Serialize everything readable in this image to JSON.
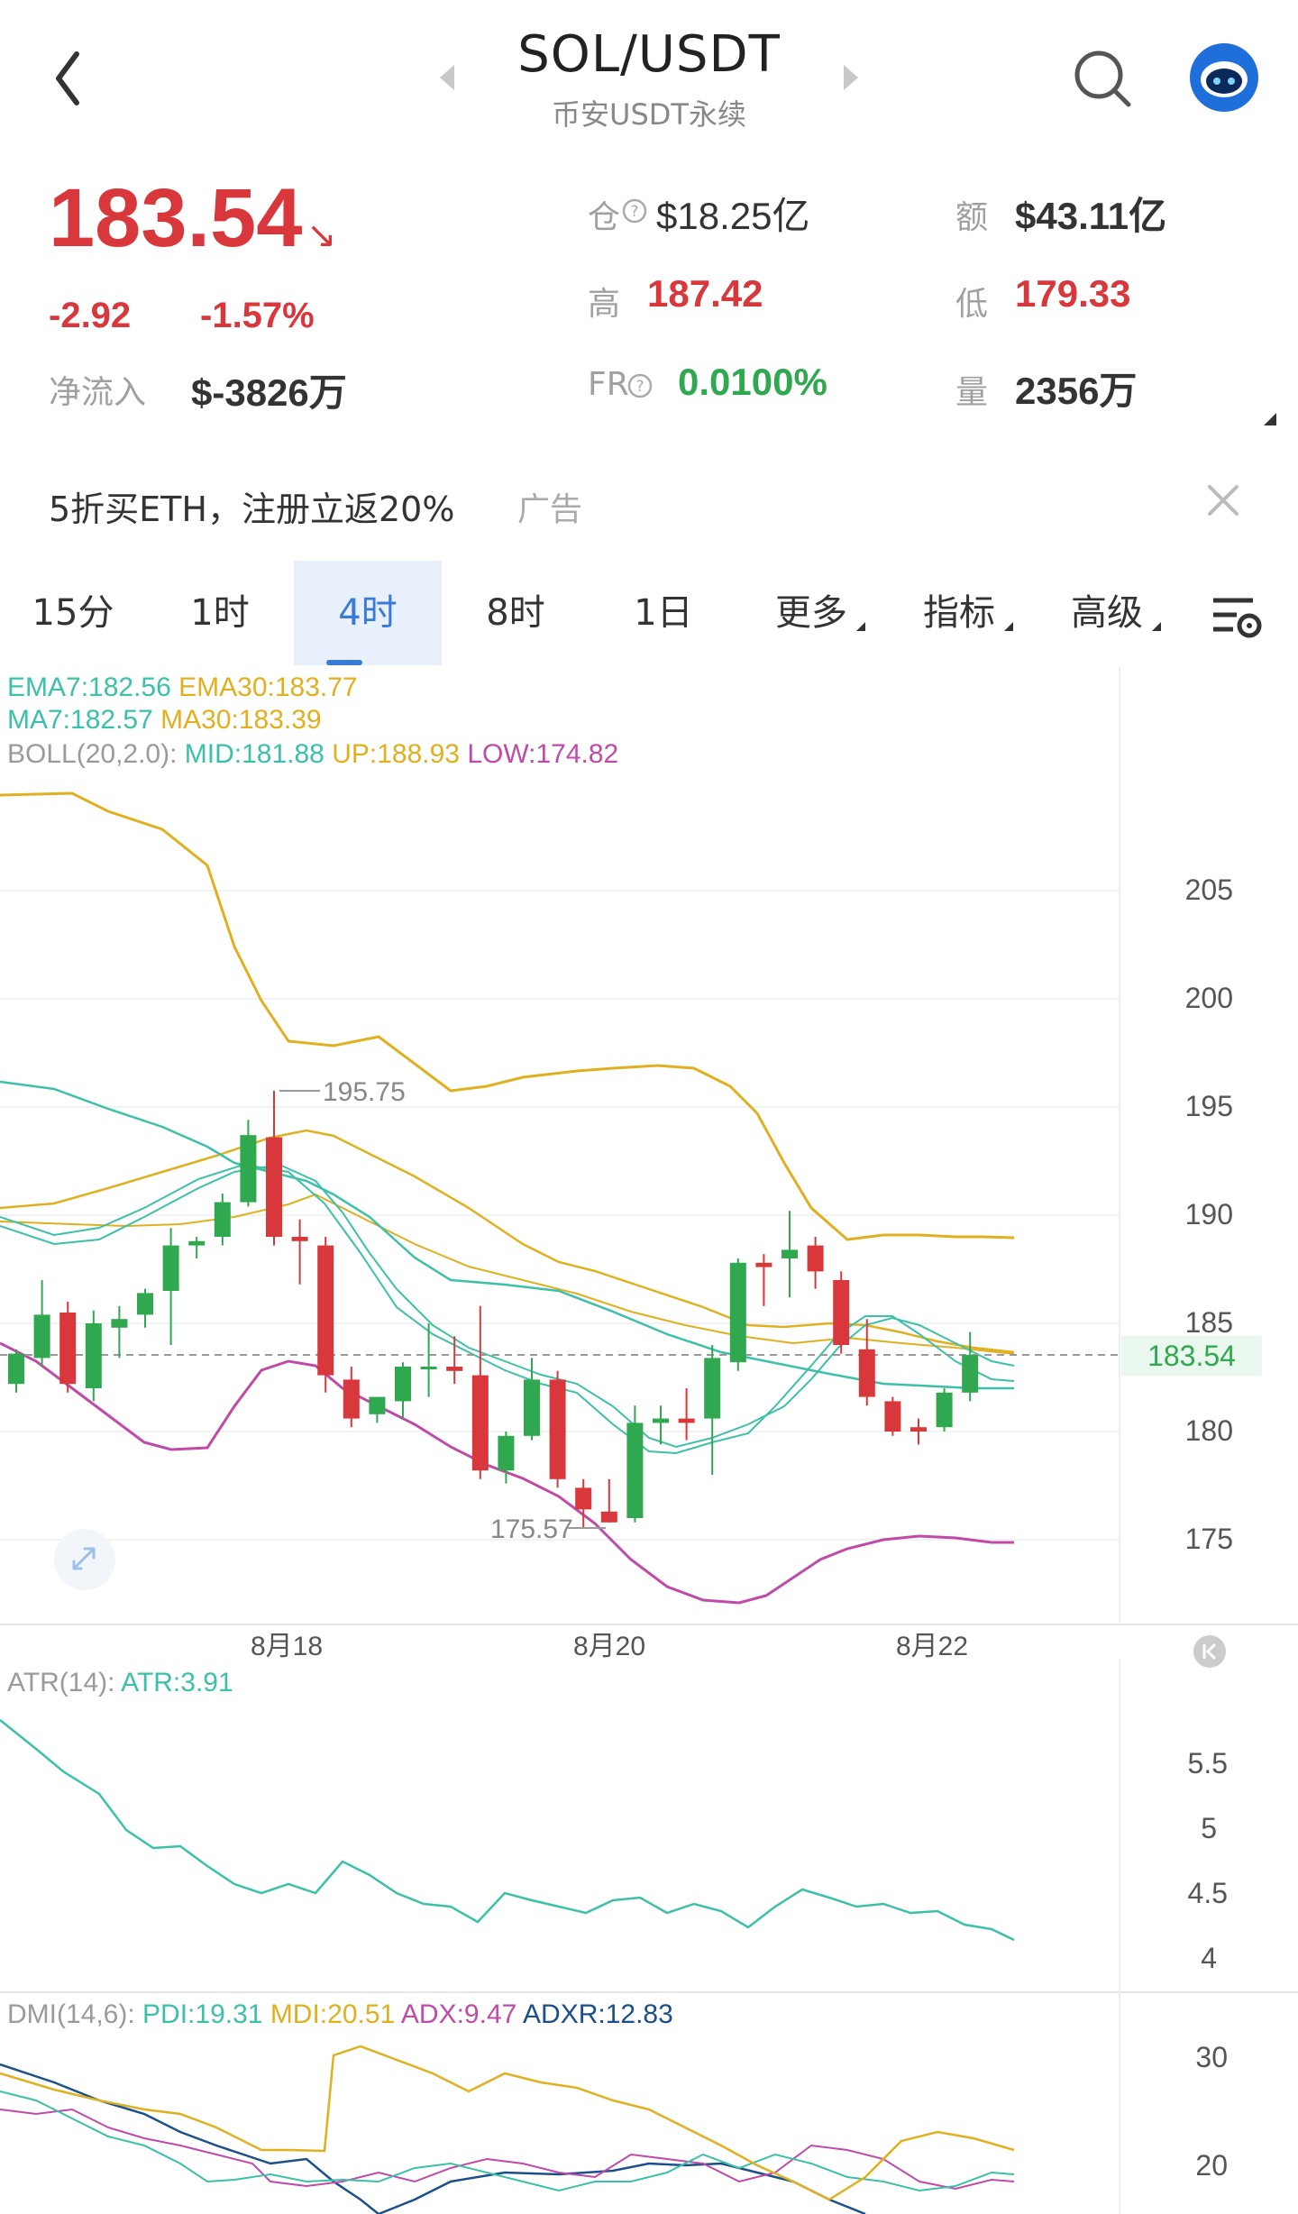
{
  "header": {
    "title": "SOL/USDT",
    "subtitle": "币安USDT永续"
  },
  "stats": {
    "price": "183.54",
    "change": "-2.92",
    "change_pct": "-1.57%",
    "netflow_label": "净流入",
    "netflow_value": "$-3826万",
    "oi_label": "仓",
    "oi_value": "$18.25亿",
    "turnover_label": "额",
    "turnover_value": "$43.11亿",
    "high_label": "高",
    "high_value": "187.42",
    "low_label": "低",
    "low_value": "179.33",
    "fr_label": "FR",
    "fr_value": "0.0100%",
    "vol_label": "量",
    "vol_value": "2356万"
  },
  "ad": {
    "text": "5折买ETH，注册立返20%",
    "tag": "广告"
  },
  "tabs": [
    "15分",
    "1时",
    "4时",
    "8时",
    "1日",
    "更多",
    "指标",
    "高级"
  ],
  "active_tab": "4时",
  "legends": {
    "ema7": "EMA7:182.56",
    "ema30": "EMA30:183.77",
    "ma7": "MA7:182.57",
    "ma30": "MA30:183.39",
    "boll_name": "BOLL(20,2.0):",
    "boll_mid": "MID:181.88",
    "boll_up": "UP:188.93",
    "boll_low": "LOW:174.82",
    "atr_name": "ATR(14):",
    "atr_val": "ATR:3.91",
    "dmi_name": "DMI(14,6):",
    "pdi": "PDI:19.31",
    "mdi": "MDI:20.51",
    "adx": "ADX:9.47",
    "adxr": "ADXR:12.83"
  },
  "colors": {
    "up": "#2fa84f",
    "down": "#d8383c",
    "accent": "#3a7bd5",
    "teal": "#3cc0a8",
    "gold": "#e0b020",
    "magenta": "#c04aa8",
    "navy": "#1a4f8a"
  },
  "chart_data": [
    {
      "type": "candlestick",
      "y_ticks": [
        "205",
        "200",
        "195",
        "190",
        "185",
        "180",
        "175"
      ],
      "x_ticks": [
        "8月18",
        "8月20",
        "8月22"
      ],
      "last_price": "183.54",
      "annotations": {
        "high": "195.75",
        "low": "175.57"
      },
      "candles": [
        {
          "o": 182.2,
          "h": 183.8,
          "c": 183.6,
          "l": 181.8
        },
        {
          "o": 183.4,
          "h": 187.0,
          "c": 185.4,
          "l": 183.0
        },
        {
          "o": 185.5,
          "h": 186.0,
          "c": 182.2,
          "l": 181.8
        },
        {
          "o": 182.0,
          "h": 185.6,
          "c": 185.0,
          "l": 181.4
        },
        {
          "o": 184.8,
          "h": 185.8,
          "c": 185.2,
          "l": 183.4
        },
        {
          "o": 185.4,
          "h": 186.6,
          "c": 186.4,
          "l": 184.8
        },
        {
          "o": 186.5,
          "h": 189.4,
          "c": 188.6,
          "l": 184.0
        },
        {
          "o": 188.6,
          "h": 189.0,
          "c": 188.8,
          "l": 188.0
        },
        {
          "o": 189.0,
          "h": 191.0,
          "c": 190.6,
          "l": 188.6
        },
        {
          "o": 190.6,
          "h": 194.4,
          "c": 193.7,
          "l": 190.4
        },
        {
          "o": 193.6,
          "h": 195.75,
          "c": 189.0,
          "l": 188.6
        },
        {
          "o": 189.0,
          "h": 189.8,
          "c": 188.8,
          "l": 186.8
        },
        {
          "o": 188.6,
          "h": 189.0,
          "c": 182.6,
          "l": 181.8
        },
        {
          "o": 182.4,
          "h": 183.0,
          "c": 180.6,
          "l": 180.2
        },
        {
          "o": 180.8,
          "h": 181.6,
          "c": 181.6,
          "l": 180.4
        },
        {
          "o": 181.4,
          "h": 183.2,
          "c": 183.0,
          "l": 180.6
        },
        {
          "o": 183.0,
          "h": 185.0,
          "c": 183.0,
          "l": 181.6
        },
        {
          "o": 183.0,
          "h": 184.4,
          "c": 182.8,
          "l": 182.2
        },
        {
          "o": 182.6,
          "h": 185.8,
          "c": 178.2,
          "l": 177.8
        },
        {
          "o": 178.2,
          "h": 180.0,
          "c": 179.8,
          "l": 177.6
        },
        {
          "o": 179.8,
          "h": 183.4,
          "c": 182.4,
          "l": 179.6
        },
        {
          "o": 182.4,
          "h": 182.8,
          "c": 177.8,
          "l": 177.4
        },
        {
          "o": 177.4,
          "h": 177.8,
          "c": 176.4,
          "l": 175.57
        },
        {
          "o": 176.3,
          "h": 177.8,
          "c": 175.8,
          "l": 175.8
        },
        {
          "o": 176.0,
          "h": 181.2,
          "c": 180.4,
          "l": 175.8
        },
        {
          "o": 180.4,
          "h": 181.2,
          "c": 180.6,
          "l": 179.4
        },
        {
          "o": 180.6,
          "h": 182.0,
          "c": 180.4,
          "l": 179.6
        },
        {
          "o": 180.6,
          "h": 184.0,
          "c": 183.4,
          "l": 178.0
        },
        {
          "o": 183.2,
          "h": 188.0,
          "c": 187.8,
          "l": 182.8
        },
        {
          "o": 187.8,
          "h": 188.2,
          "c": 187.6,
          "l": 185.8
        },
        {
          "o": 188.0,
          "h": 190.2,
          "c": 188.4,
          "l": 186.2
        },
        {
          "o": 188.6,
          "h": 189.0,
          "c": 187.4,
          "l": 186.6
        },
        {
          "o": 187.0,
          "h": 187.4,
          "c": 184.0,
          "l": 183.6
        },
        {
          "o": 183.8,
          "h": 185.2,
          "c": 181.6,
          "l": 181.2
        },
        {
          "o": 181.4,
          "h": 181.6,
          "c": 180.0,
          "l": 179.8
        },
        {
          "o": 180.2,
          "h": 180.6,
          "c": 180.0,
          "l": 179.4
        },
        {
          "o": 180.2,
          "h": 182.0,
          "c": 181.8,
          "l": 180.0
        },
        {
          "o": 181.8,
          "h": 184.6,
          "c": 183.54,
          "l": 181.4
        }
      ]
    },
    {
      "type": "line",
      "name": "ATR(14)",
      "y_ticks": [
        "5.5",
        "5",
        "4.5",
        "4"
      ],
      "last": "3.91"
    },
    {
      "type": "line",
      "name": "DMI(14,6)",
      "y_ticks": [
        "30",
        "20"
      ]
    }
  ]
}
